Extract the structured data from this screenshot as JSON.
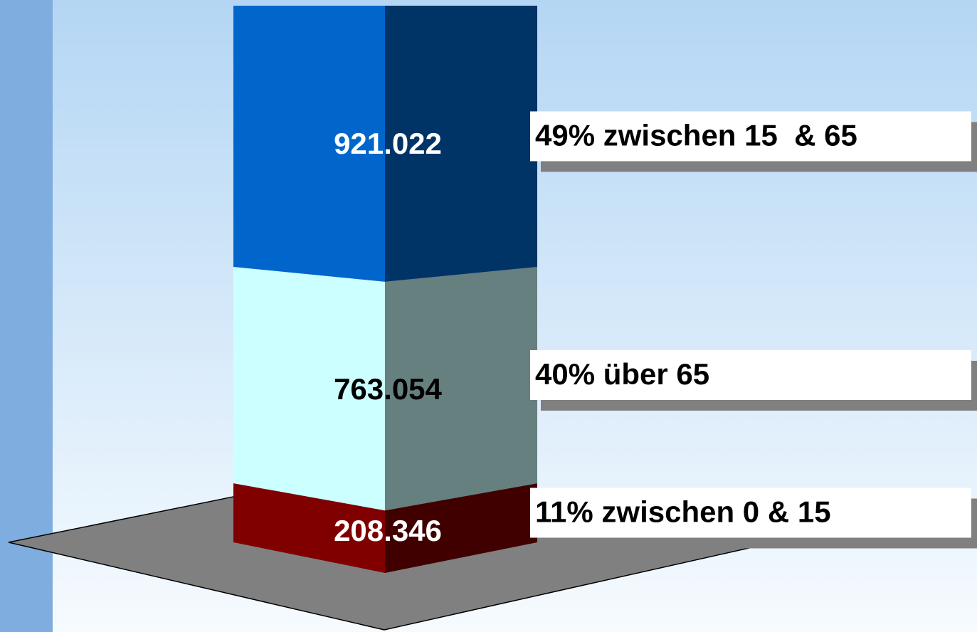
{
  "chart_data": {
    "type": "stacked-bar-3d",
    "series": [
      {
        "name": "11% zwischen 0 & 15",
        "color": "#800000",
        "values": [
          208346
        ],
        "value_labels": [
          "208.346"
        ]
      },
      {
        "name": "40% über 65",
        "color": "#ccffff",
        "values": [
          763054
        ],
        "value_labels": [
          "763.054"
        ]
      },
      {
        "name": "49% zwischen 15  & 65",
        "color": "#0066cc",
        "values": [
          921022
        ],
        "value_labels": [
          "921.022"
        ]
      }
    ]
  }
}
